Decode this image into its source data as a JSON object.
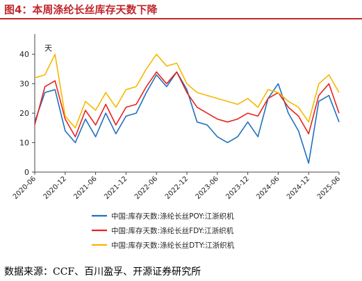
{
  "title": "图4：本周涤纶长丝库存天数下降",
  "source": "数据来源：CCF、百川盈孚、开源证券研究所",
  "chart_data": {
    "type": "line",
    "unit_label": "天",
    "ylim": [
      0,
      45
    ],
    "yticks": [
      0,
      10,
      20,
      30,
      40
    ],
    "x_tick_labels": [
      "2020-06",
      "2020-12",
      "2021-06",
      "2021-12",
      "2022-06",
      "2022-12",
      "2023-06",
      "2023-12",
      "2024-06",
      "2024-12",
      "2025-06"
    ],
    "x": [
      "2020-06",
      "2020-08",
      "2020-10",
      "2020-12",
      "2021-02",
      "2021-04",
      "2021-06",
      "2021-08",
      "2021-10",
      "2021-12",
      "2022-02",
      "2022-04",
      "2022-06",
      "2022-08",
      "2022-10",
      "2022-12",
      "2023-02",
      "2023-04",
      "2023-06",
      "2023-08",
      "2023-10",
      "2023-12",
      "2024-02",
      "2024-04",
      "2024-06",
      "2024-08",
      "2024-10",
      "2024-12",
      "2025-02",
      "2025-04",
      "2025-06"
    ],
    "legend_position": "bottom",
    "grid": false,
    "series": [
      {
        "name": "中国:库存天数:涤纶长丝POY:江浙织机",
        "color": "#1f6fbf",
        "values": [
          17,
          27,
          28,
          14,
          10,
          18,
          12,
          20,
          13,
          19,
          20,
          27,
          33,
          29,
          34,
          28,
          17,
          16,
          12,
          10,
          12,
          17,
          12,
          25,
          30,
          20,
          14,
          3,
          24,
          26,
          17
        ]
      },
      {
        "name": "中国:库存天数:涤纶长丝FDY:江浙织机",
        "color": "#e8221c",
        "values": [
          16,
          29,
          31,
          18,
          12,
          21,
          16,
          23,
          16,
          22,
          23,
          29,
          34,
          30,
          34,
          27,
          22,
          20,
          18,
          17,
          18,
          20,
          19,
          25,
          27,
          22,
          19,
          13,
          26,
          30,
          20
        ]
      },
      {
        "name": "中国:库存天数:涤纶长丝DTY:江浙织机",
        "color": "#f5b800",
        "values": [
          32,
          33,
          40,
          19,
          15,
          24,
          21,
          27,
          22,
          28,
          29,
          35,
          40,
          36,
          37,
          30,
          27,
          26,
          25,
          24,
          23,
          25,
          22,
          28,
          27,
          24,
          22,
          17,
          30,
          33,
          27
        ]
      }
    ]
  }
}
